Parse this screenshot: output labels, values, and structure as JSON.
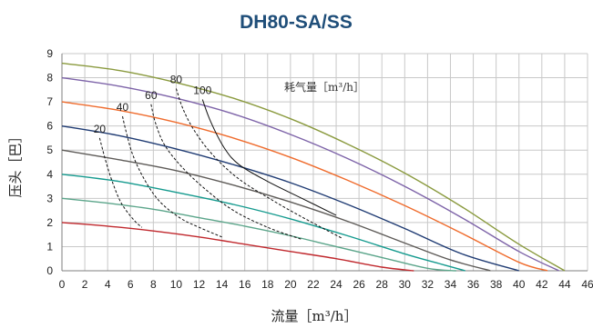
{
  "chart_data": {
    "type": "line",
    "title": "DH80-SA/SS",
    "xlabel": "流量［m³/h］",
    "ylabel": "压头［巴］",
    "xlim": [
      0,
      46
    ],
    "ylim": [
      0,
      9
    ],
    "xticks": [
      0,
      2,
      4,
      6,
      8,
      10,
      12,
      14,
      16,
      18,
      20,
      22,
      24,
      26,
      28,
      30,
      32,
      34,
      36,
      38,
      40,
      42,
      44,
      46
    ],
    "yticks": [
      0,
      1,
      2,
      3,
      4,
      5,
      6,
      7,
      8,
      9
    ],
    "grid": true,
    "annotation": "耗气量［m³/h］",
    "series": [
      {
        "color": "#c0282d",
        "x": [
          0,
          4,
          8,
          12,
          16,
          20,
          24,
          28,
          30.8
        ],
        "y": [
          2.0,
          1.85,
          1.65,
          1.4,
          1.1,
          0.8,
          0.5,
          0.15,
          0
        ]
      },
      {
        "color": "#5ba58a",
        "x": [
          0,
          4,
          8,
          12,
          16,
          20,
          24,
          28,
          32,
          34.5
        ],
        "y": [
          3.0,
          2.8,
          2.55,
          2.2,
          1.85,
          1.45,
          1.0,
          0.55,
          0.1,
          0
        ]
      },
      {
        "color": "#149a8e",
        "x": [
          0,
          5,
          10,
          15,
          20,
          25,
          30,
          33,
          35.3
        ],
        "y": [
          4.0,
          3.7,
          3.25,
          2.75,
          2.15,
          1.45,
          0.7,
          0.3,
          0
        ]
      },
      {
        "color": "#5e5b58",
        "x": [
          0,
          5,
          10,
          15,
          20,
          25,
          30,
          34,
          37.5
        ],
        "y": [
          5.0,
          4.6,
          4.15,
          3.55,
          2.85,
          2.05,
          1.15,
          0.45,
          0
        ]
      },
      {
        "color": "#1f3b73",
        "x": [
          0,
          5,
          10,
          15,
          20,
          25,
          30,
          35,
          40
        ],
        "y": [
          6.0,
          5.6,
          5.05,
          4.4,
          3.65,
          2.75,
          1.75,
          0.7,
          0
        ]
      },
      {
        "color": "#ef6b2c",
        "x": [
          0,
          5,
          10,
          15,
          20,
          25,
          30,
          35,
          40,
          42.5
        ],
        "y": [
          7.0,
          6.65,
          6.15,
          5.5,
          4.7,
          3.75,
          2.7,
          1.55,
          0.35,
          0
        ]
      },
      {
        "color": "#7d63a8",
        "x": [
          0,
          5,
          10,
          15,
          20,
          25,
          30,
          35,
          40,
          43.5
        ],
        "y": [
          8.0,
          7.65,
          7.15,
          6.5,
          5.65,
          4.65,
          3.5,
          2.2,
          0.8,
          0
        ]
      },
      {
        "color": "#8a9a3e",
        "x": [
          0,
          5,
          10,
          15,
          20,
          25,
          30,
          35,
          40,
          44
        ],
        "y": [
          8.6,
          8.3,
          7.8,
          7.15,
          6.3,
          5.25,
          4.05,
          2.65,
          1.1,
          0
        ]
      }
    ],
    "air_consumption": [
      {
        "label": "20",
        "style": "dashed",
        "x": [
          3.3,
          3.8,
          4.4,
          5.2,
          6.3,
          7.0
        ],
        "y": [
          5.5,
          4.6,
          3.7,
          2.8,
          2.1,
          1.8
        ]
      },
      {
        "label": "40",
        "style": "dashed",
        "x": [
          5.3,
          5.6,
          6.2,
          7.2,
          8.5,
          10.3,
          12.0,
          14.0
        ],
        "y": [
          6.4,
          5.8,
          4.8,
          3.8,
          2.9,
          2.2,
          1.8,
          1.4
        ]
      },
      {
        "label": "60",
        "style": "dashed",
        "x": [
          7.8,
          8.2,
          9.0,
          10.5,
          12.5,
          15.0,
          18.0,
          21.0
        ],
        "y": [
          6.9,
          6.1,
          5.2,
          4.3,
          3.4,
          2.5,
          1.8,
          1.3
        ]
      },
      {
        "label": "80",
        "style": "dashed",
        "x": [
          10.0,
          10.6,
          11.6,
          13.2,
          15.5,
          18.5,
          21.5,
          24.5
        ],
        "y": [
          7.55,
          6.7,
          5.8,
          4.8,
          3.8,
          2.9,
          2.1,
          1.35
        ]
      },
      {
        "label": "100",
        "style": "solid",
        "x": [
          12.3,
          13.0,
          14.2,
          15.5,
          18.0,
          21.0,
          24.0
        ],
        "y": [
          7.1,
          6.2,
          5.1,
          4.4,
          3.7,
          3.0,
          2.3
        ]
      }
    ]
  }
}
